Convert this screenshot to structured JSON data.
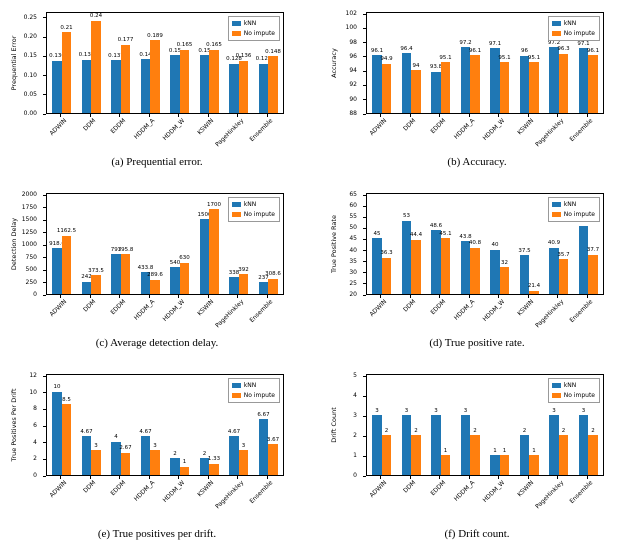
{
  "page": {
    "background": "#ffffff"
  },
  "legend": {
    "items": [
      {
        "label": "kNN",
        "color": "#1f77b4"
      },
      {
        "label": "No impute",
        "color": "#ff7f0e"
      }
    ]
  },
  "chart_data": [
    {
      "id": "a",
      "type": "bar",
      "caption": "(a) Prequential error.",
      "ylabel": "Prequential Error",
      "ylim": [
        0,
        0.26
      ],
      "yticks": [
        "0.00",
        "0.05",
        "0.10",
        "0.15",
        "0.20",
        "0.25"
      ],
      "grid": false,
      "legend_position": "top-right",
      "categories": [
        "ADWIN",
        "DDM",
        "EDDM",
        "HDDM_A",
        "HDDM_W",
        "KSWIN",
        "PageHinkley",
        "Ensemble"
      ],
      "series": [
        {
          "name": "kNN",
          "color": "#1f77b4",
          "values": [
            0.136,
            0.139,
            0.137,
            0.14,
            0.15,
            0.15,
            0.128,
            0.128
          ],
          "labels": [
            "0.136",
            "0.139",
            "0.137",
            "0.14",
            "0.15",
            "0.15",
            "0.128",
            "0.128"
          ]
        },
        {
          "name": "No impute",
          "color": "#ff7f0e",
          "values": [
            0.21,
            0.24,
            0.177,
            0.189,
            0.165,
            0.165,
            0.136,
            0.148
          ],
          "labels": [
            "0.21",
            "0.24",
            "0.177",
            "0.189",
            "0.165",
            "0.165",
            "0.136",
            "0.148"
          ]
        }
      ]
    },
    {
      "id": "b",
      "type": "bar",
      "caption": "(b) Accuracy.",
      "ylabel": "Accuracy",
      "ylim": [
        88,
        102
      ],
      "yticks": [
        "88",
        "90",
        "92",
        "94",
        "96",
        "98",
        "100",
        "102"
      ],
      "grid": false,
      "legend_position": "top-right",
      "categories": [
        "ADWIN",
        "DDM",
        "EDDM",
        "HDDM_A",
        "HDDM_W",
        "KSWIN",
        "PageHinkley",
        "Ensemble"
      ],
      "series": [
        {
          "name": "kNN",
          "color": "#1f77b4",
          "values": [
            96.1,
            96.4,
            93.8,
            97.2,
            97.1,
            96,
            97.2,
            97.1
          ],
          "labels": [
            "96.1",
            "96.4",
            "93.8",
            "97.2",
            "97.1",
            "96",
            "97.2",
            "97.1"
          ]
        },
        {
          "name": "No impute",
          "color": "#ff7f0e",
          "values": [
            94.9,
            94,
            95.1,
            96.1,
            95.1,
            95.1,
            96.3,
            96.1
          ],
          "labels": [
            "94.9",
            "94",
            "95.1",
            "96.1",
            "95.1",
            "95.1",
            "96.3",
            "96.1"
          ]
        }
      ]
    },
    {
      "id": "c",
      "type": "bar",
      "caption": "(c) Average detection delay.",
      "ylabel": "Detection Delay",
      "ylim": [
        0,
        2000
      ],
      "yticks": [
        "0",
        "250",
        "500",
        "750",
        "1000",
        "1250",
        "1500",
        "1750",
        "2000"
      ],
      "grid": false,
      "legend_position": "top-right",
      "categories": [
        "ADWIN",
        "DDM",
        "EDDM",
        "HDDM_A",
        "HDDM_W",
        "KSWIN",
        "PageHinkley",
        "Ensemble"
      ],
      "series": [
        {
          "name": "kNN",
          "color": "#1f77b4",
          "values": [
            918.6,
            242,
            793,
            433.8,
            540,
            1500,
            338,
            237
          ],
          "labels": [
            "918.6",
            "242",
            "793",
            "433.8",
            "540",
            "1500",
            "338",
            "237"
          ]
        },
        {
          "name": "No impute",
          "color": "#ff7f0e",
          "values": [
            1162.5,
            373.5,
            795.8,
            289.6,
            630,
            1700,
            392,
            308.6
          ],
          "labels": [
            "1162.5",
            "373.5",
            "795.8",
            "289.6",
            "630",
            "1700",
            "392",
            "308.6"
          ]
        }
      ]
    },
    {
      "id": "d",
      "type": "bar",
      "caption": "(d) True positive rate.",
      "ylabel": "True Positive Rate",
      "ylim": [
        20,
        65
      ],
      "yticks": [
        "20",
        "25",
        "30",
        "35",
        "40",
        "45",
        "50",
        "55",
        "60",
        "65"
      ],
      "grid": false,
      "legend_position": "top-right",
      "categories": [
        "ADWIN",
        "DDM",
        "EDDM",
        "HDDM_A",
        "HDDM_W",
        "KSWIN",
        "PageHinkley",
        "Ensemble"
      ],
      "series": [
        {
          "name": "kNN",
          "color": "#1f77b4",
          "values": [
            45,
            53,
            48.6,
            43.8,
            40,
            37.5,
            40.9,
            50.8
          ],
          "labels": [
            "45",
            "53",
            "48.6",
            "43.8",
            "40",
            "37.5",
            "40.9",
            "50.8"
          ]
        },
        {
          "name": "No impute",
          "color": "#ff7f0e",
          "values": [
            36.3,
            44.4,
            45.1,
            40.8,
            32,
            21.4,
            35.7,
            37.7
          ],
          "labels": [
            "36.3",
            "44.4",
            "45.1",
            "40.8",
            "32",
            "21.4",
            "35.7",
            "37.7"
          ]
        }
      ]
    },
    {
      "id": "e",
      "type": "bar",
      "caption": "(e) True positives per drift.",
      "ylabel": "True Positives Per Drift",
      "ylim": [
        0,
        12
      ],
      "yticks": [
        "0",
        "2",
        "4",
        "6",
        "8",
        "10",
        "12"
      ],
      "grid": false,
      "legend_position": "top-right",
      "categories": [
        "ADWIN",
        "DDM",
        "EDDM",
        "HDDM_A",
        "HDDM_W",
        "KSWIN",
        "PageHinkley",
        "Ensemble"
      ],
      "series": [
        {
          "name": "kNN",
          "color": "#1f77b4",
          "values": [
            10,
            4.67,
            4,
            4.67,
            2,
            2,
            4.67,
            6.67
          ],
          "labels": [
            "10",
            "4.67",
            "4",
            "4.67",
            "2",
            "2",
            "4.67",
            "6.67"
          ]
        },
        {
          "name": "No impute",
          "color": "#ff7f0e",
          "values": [
            8.5,
            3,
            2.67,
            3,
            1,
            1.33,
            3,
            3.67
          ],
          "labels": [
            "8.5",
            "3",
            "2.67",
            "3",
            "1",
            "1.33",
            "3",
            "3.67"
          ]
        }
      ]
    },
    {
      "id": "f",
      "type": "bar",
      "caption": "(f) Drift count.",
      "ylabel": "Drift Count",
      "ylim": [
        0,
        5
      ],
      "yticks": [
        "0",
        "1",
        "2",
        "3",
        "4",
        "5"
      ],
      "grid": false,
      "legend_position": "top-right",
      "categories": [
        "ADWIN",
        "DDM",
        "EDDM",
        "HDDM_A",
        "HDDM_W",
        "KSWIN",
        "PageHinkley",
        "Ensemble"
      ],
      "series": [
        {
          "name": "kNN",
          "color": "#1f77b4",
          "values": [
            3,
            3,
            3,
            3,
            1,
            2,
            3,
            3
          ],
          "labels": [
            "3",
            "3",
            "3",
            "3",
            "1",
            "2",
            "3",
            "3"
          ]
        },
        {
          "name": "No impute",
          "color": "#ff7f0e",
          "values": [
            2,
            2,
            1,
            2,
            1,
            1,
            2,
            2
          ],
          "labels": [
            "2",
            "2",
            "1",
            "2",
            "1",
            "1",
            "2",
            "2"
          ]
        }
      ]
    }
  ]
}
